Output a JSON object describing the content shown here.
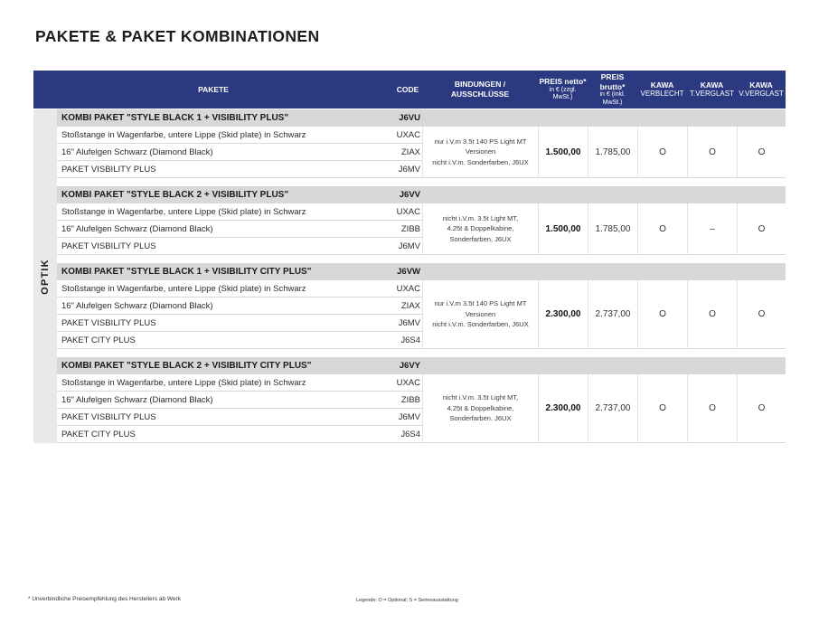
{
  "page": {
    "title": "PAKETE & PAKET KOMBINATIONEN",
    "category_label": "OPTIK",
    "footnote": "* Unverbindliche Preisempfehlung des Herstellers ab Werk",
    "legend": "Legende: O = Optional; S = Serienausstattung"
  },
  "colors": {
    "header_blue": "#2b3a80",
    "section_header_gray": "#d8d8d8",
    "category_band_gray": "#e9e9e9"
  },
  "table": {
    "headers": {
      "pakete": "PAKETE",
      "code": "CODE",
      "bindungen_line1": "BINDUNGEN /",
      "bindungen_line2": "AUSSCHLÜSSE",
      "preis_netto": {
        "line1": "PREIS netto*",
        "line2": "in € (zzgl. MwSt.)"
      },
      "preis_brutto": {
        "line1": "PREIS brutto*",
        "line2": "in € (inkl. MwSt.)"
      },
      "kawa_verblecht": {
        "line1": "KAWA",
        "line2": "VERBLECHT"
      },
      "kawa_tverglast": {
        "line1": "KAWA",
        "line2": "T.VERGLAST"
      },
      "kawa_vverglast": {
        "line1": "KAWA",
        "line2": "V.VERGLAST"
      }
    },
    "sections": [
      {
        "title": "KOMBI PAKET \"STYLE BLACK 1 + VISIBILITY PLUS\"",
        "code": "J6VU",
        "items": [
          {
            "label": "Stoßstange in Wagenfarbe, untere Lippe (Skid plate) in Schwarz",
            "code": "UXAC"
          },
          {
            "label": "16\" Alufelgen Schwarz (Diamond Black)",
            "code": "ZIAX"
          },
          {
            "label": "PAKET VISBILITY PLUS",
            "code": "J6MV"
          }
        ],
        "bindungen": "nur i.V.m 3.5t 140 PS Light MT\nVersionen\nnicht i.V.m. Sonderfarben, J6UX",
        "preis_netto": "1.500,00",
        "preis_brutto": "1.785,00",
        "kawa_verblecht": "O",
        "kawa_tverglast": "O",
        "kawa_vverglast": "O"
      },
      {
        "title": "KOMBI PAKET \"STYLE BLACK 2 + VISIBILITY PLUS\"",
        "code": "J6VV",
        "items": [
          {
            "label": "Stoßstange in Wagenfarbe, untere Lippe (Skid plate) in Schwarz",
            "code": "UXAC"
          },
          {
            "label": "16\" Alufelgen Schwarz (Diamond Black)",
            "code": "ZIBB"
          },
          {
            "label": "PAKET VISBILITY PLUS",
            "code": "J6MV"
          }
        ],
        "bindungen": "nicht i.V.m. 3.5t Light MT,\n4.25t & Doppelkabine,\nSonderfarben, J6UX",
        "preis_netto": "1.500,00",
        "preis_brutto": "1.785,00",
        "kawa_verblecht": "O",
        "kawa_tverglast": "–",
        "kawa_vverglast": "O"
      },
      {
        "title": "KOMBI PAKET \"STYLE BLACK 1 + VISIBILITY CITY PLUS\"",
        "code": "J6VW",
        "items": [
          {
            "label": "Stoßstange in Wagenfarbe, untere Lippe (Skid plate) in Schwarz",
            "code": "UXAC"
          },
          {
            "label": "16\" Alufelgen Schwarz (Diamond Black)",
            "code": "ZIAX"
          },
          {
            "label": "PAKET VISBILITY PLUS",
            "code": "J6MV"
          },
          {
            "label": "PAKET CITY PLUS",
            "code": "J6S4"
          }
        ],
        "bindungen": "nur i.V.m 3.5t 140 PS Light MT\nVersionen\nnicht i.V.m. Sonderfarben, J6UX",
        "preis_netto": "2.300,00",
        "preis_brutto": "2.737,00",
        "kawa_verblecht": "O",
        "kawa_tverglast": "O",
        "kawa_vverglast": "O"
      },
      {
        "title": "KOMBI PAKET \"STYLE BLACK 2 + VISIBILITY CITY PLUS\"",
        "code": "J6VY",
        "items": [
          {
            "label": "Stoßstange in Wagenfarbe, untere Lippe (Skid plate) in Schwarz",
            "code": "UXAC"
          },
          {
            "label": "16\" Alufelgen Schwarz (Diamond Black)",
            "code": "ZIBB"
          },
          {
            "label": "PAKET VISBILITY PLUS",
            "code": "J6MV"
          },
          {
            "label": "PAKET CITY PLUS",
            "code": "J6S4"
          }
        ],
        "bindungen": "nicht i.V.m. 3.5t Light MT,\n4.25t & Doppelkabine,\nSonderfarben. J6UX",
        "preis_netto": "2.300,00",
        "preis_brutto": "2.737,00",
        "kawa_verblecht": "O",
        "kawa_tverglast": "O",
        "kawa_vverglast": "O"
      }
    ]
  }
}
